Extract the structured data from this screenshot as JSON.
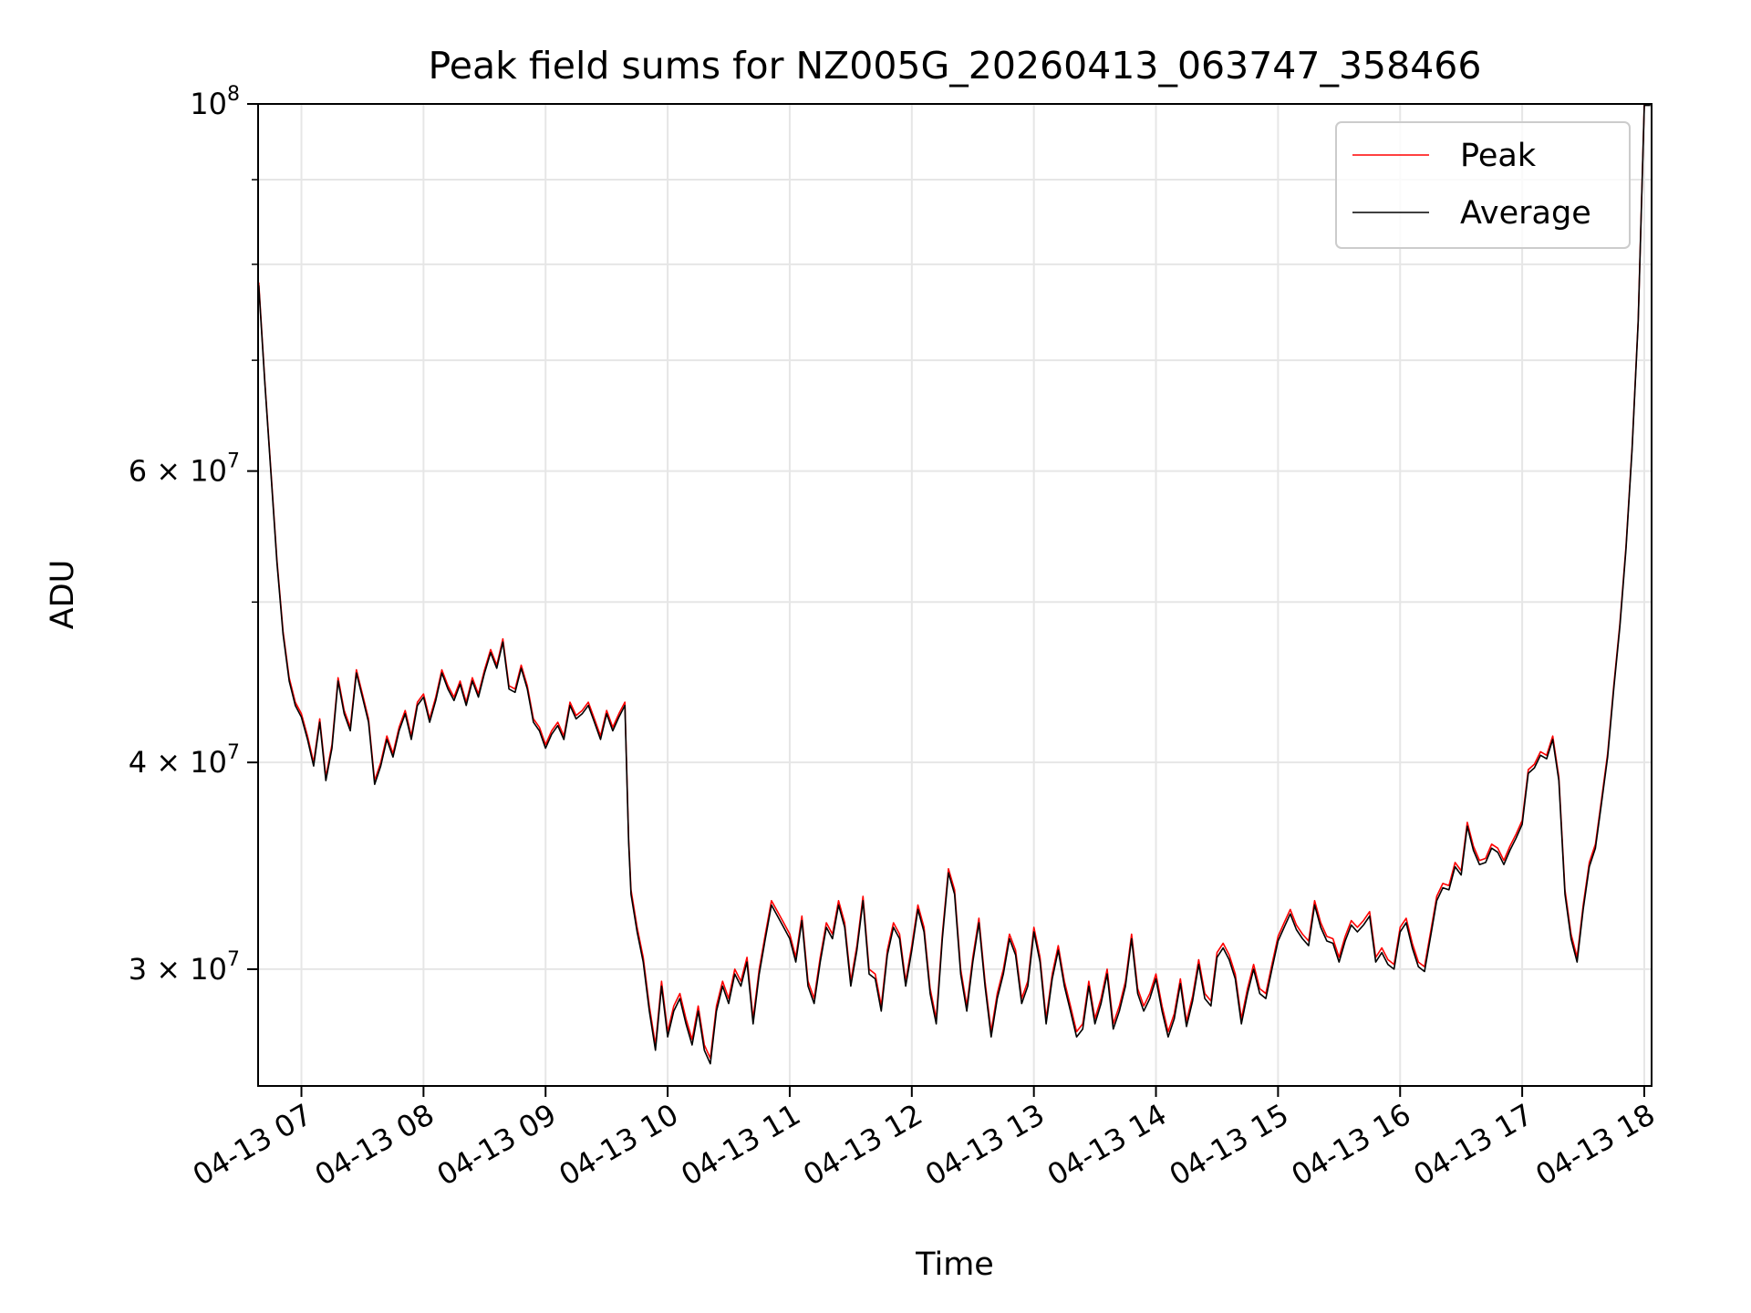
{
  "chart_data": {
    "type": "line",
    "title": "Peak field sums for NZ005G_20260413_063747_358466",
    "xlabel": "Time",
    "ylabel": "ADU",
    "yscale": "log",
    "ylim": [
      25500000,
      100000000
    ],
    "xlim": [
      6.645,
      18.06
    ],
    "grid": true,
    "legend_position": "top-right",
    "x_ticks": [
      {
        "value": 7,
        "label": "04-13 07"
      },
      {
        "value": 8,
        "label": "04-13 08"
      },
      {
        "value": 9,
        "label": "04-13 09"
      },
      {
        "value": 10,
        "label": "04-13 10"
      },
      {
        "value": 11,
        "label": "04-13 11"
      },
      {
        "value": 12,
        "label": "04-13 12"
      },
      {
        "value": 13,
        "label": "04-13 13"
      },
      {
        "value": 14,
        "label": "04-13 14"
      },
      {
        "value": 15,
        "label": "04-13 15"
      },
      {
        "value": 16,
        "label": "04-13 16"
      },
      {
        "value": 17,
        "label": "04-13 17"
      },
      {
        "value": 18,
        "label": "04-13 18"
      }
    ],
    "y_major_ticks": [
      {
        "value": 30000000,
        "mantissa": "3",
        "exponent": "7"
      },
      {
        "value": 40000000,
        "mantissa": "4",
        "exponent": "7"
      },
      {
        "value": 60000000,
        "mantissa": "6",
        "exponent": "7"
      },
      {
        "value": 100000000,
        "mantissa": "",
        "exponent": "8"
      }
    ],
    "y_ticks_base": "10",
    "y_ticks_times": "×",
    "y_minor_ticks": [
      50000000,
      70000000,
      80000000,
      90000000
    ],
    "series": [
      {
        "name": "Peak",
        "color": "#ff0000",
        "x": [
          6.65,
          6.7,
          6.75,
          6.8,
          6.85,
          6.9,
          6.95,
          7.0,
          7.05,
          7.1,
          7.15,
          7.2,
          7.25,
          7.3,
          7.35,
          7.4,
          7.45,
          7.5,
          7.55,
          7.6,
          7.65,
          7.7,
          7.75,
          7.8,
          7.85,
          7.9,
          7.95,
          8.0,
          8.05,
          8.1,
          8.15,
          8.2,
          8.25,
          8.3,
          8.35,
          8.4,
          8.45,
          8.5,
          8.55,
          8.6,
          8.65,
          8.7,
          8.75,
          8.8,
          8.85,
          8.9,
          8.95,
          9.0,
          9.05,
          9.1,
          9.15,
          9.2,
          9.25,
          9.3,
          9.35,
          9.4,
          9.45,
          9.5,
          9.55,
          9.6,
          9.65,
          9.68,
          9.7,
          9.75,
          9.8,
          9.85,
          9.9,
          9.95,
          10.0,
          10.05,
          10.1,
          10.15,
          10.2,
          10.25,
          10.3,
          10.35,
          10.4,
          10.45,
          10.5,
          10.55,
          10.6,
          10.65,
          10.7,
          10.75,
          10.8,
          10.85,
          10.9,
          10.95,
          11.0,
          11.05,
          11.1,
          11.15,
          11.2,
          11.25,
          11.3,
          11.35,
          11.4,
          11.45,
          11.5,
          11.55,
          11.6,
          11.65,
          11.7,
          11.75,
          11.8,
          11.85,
          11.9,
          11.95,
          12.0,
          12.05,
          12.1,
          12.15,
          12.2,
          12.25,
          12.3,
          12.35,
          12.4,
          12.45,
          12.5,
          12.55,
          12.6,
          12.65,
          12.7,
          12.75,
          12.8,
          12.85,
          12.9,
          12.95,
          13.0,
          13.05,
          13.1,
          13.15,
          13.2,
          13.25,
          13.3,
          13.35,
          13.4,
          13.45,
          13.5,
          13.55,
          13.6,
          13.65,
          13.7,
          13.75,
          13.8,
          13.85,
          13.9,
          13.95,
          14.0,
          14.05,
          14.1,
          14.15,
          14.2,
          14.25,
          14.3,
          14.35,
          14.4,
          14.45,
          14.5,
          14.55,
          14.6,
          14.65,
          14.7,
          14.75,
          14.8,
          14.85,
          14.9,
          14.95,
          15.0,
          15.05,
          15.1,
          15.15,
          15.2,
          15.25,
          15.3,
          15.35,
          15.4,
          15.45,
          15.5,
          15.55,
          15.6,
          15.65,
          15.7,
          15.75,
          15.8,
          15.85,
          15.9,
          15.95,
          16.0,
          16.05,
          16.1,
          16.15,
          16.2,
          16.25,
          16.3,
          16.35,
          16.4,
          16.45,
          16.5,
          16.55,
          16.6,
          16.65,
          16.7,
          16.75,
          16.8,
          16.85,
          16.9,
          16.95,
          17.0,
          17.05,
          17.1,
          17.15,
          17.2,
          17.25,
          17.3,
          17.35,
          17.4,
          17.45,
          17.5,
          17.55,
          17.6,
          17.65,
          17.7,
          17.75,
          17.8,
          17.85,
          17.9,
          17.95,
          18.0,
          18.05
        ],
        "values": [
          78000000,
          68000000,
          60000000,
          53000000,
          48000000,
          45000000,
          43500000,
          42800000,
          41500000,
          40000000,
          42500000,
          39200000,
          41000000,
          45000000,
          43000000,
          42000000,
          45500000,
          44000000,
          42500000,
          39000000,
          40000000,
          41500000,
          40500000,
          42000000,
          43000000,
          41500000,
          43500000,
          44000000,
          42500000,
          43800000,
          45500000,
          44500000,
          43800000,
          44800000,
          43500000,
          45000000,
          44000000,
          45500000,
          46800000,
          45800000,
          47500000,
          44500000,
          44300000,
          45800000,
          44500000,
          42500000,
          42000000,
          41000000,
          41800000,
          42300000,
          41500000,
          43500000,
          42700000,
          43000000,
          43500000,
          42500000,
          41500000,
          43000000,
          42000000,
          42800000,
          43500000,
          36000000,
          33500000,
          31800000,
          30500000,
          28500000,
          27000000,
          29500000,
          27500000,
          28500000,
          29000000,
          28000000,
          27200000,
          28500000,
          27000000,
          26500000,
          28500000,
          29500000,
          28800000,
          30000000,
          29500000,
          30500000,
          28000000,
          30000000,
          31500000,
          33000000,
          32500000,
          32000000,
          31500000,
          30500000,
          32300000,
          29500000,
          28800000,
          30500000,
          32000000,
          31500000,
          33000000,
          32000000,
          29500000,
          31000000,
          33200000,
          30000000,
          29800000,
          28500000,
          30800000,
          32000000,
          31500000,
          29500000,
          31000000,
          32800000,
          31800000,
          29200000,
          28000000,
          31500000,
          34500000,
          33500000,
          30000000,
          28500000,
          30500000,
          32200000,
          29500000,
          27500000,
          29000000,
          30000000,
          31500000,
          30800000,
          28800000,
          29500000,
          31800000,
          30500000,
          28000000,
          29800000,
          31000000,
          29500000,
          28500000,
          27500000,
          27800000,
          29500000,
          28000000,
          28800000,
          30000000,
          27800000,
          28500000,
          29500000,
          31500000,
          29200000,
          28500000,
          29000000,
          29800000,
          28500000,
          27500000,
          28200000,
          29600000,
          27900000,
          28900000,
          30400000,
          29000000,
          28700000,
          30700000,
          31100000,
          30600000,
          29800000,
          28000000,
          29200000,
          30200000,
          29200000,
          29000000,
          30200000,
          31400000,
          32000000,
          32600000,
          31900000,
          31500000,
          31200000,
          33000000,
          32000000,
          31400000,
          31300000,
          30500000,
          31400000,
          32100000,
          31800000,
          32100000,
          32500000,
          30500000,
          30900000,
          30400000,
          30200000,
          31800000,
          32200000,
          31100000,
          30300000,
          30100000,
          31600000,
          33200000,
          33800000,
          33700000,
          34800000,
          34400000,
          36800000,
          35600000,
          34900000,
          35000000,
          35700000,
          35500000,
          34900000,
          35600000,
          36200000,
          36900000,
          39600000,
          39900000,
          40600000,
          40400000,
          41500000,
          39200000,
          33500000,
          31500000,
          30500000,
          32800000,
          34800000,
          35700000,
          38000000,
          40500000,
          44500000,
          48500000,
          54000000,
          62000000,
          74000000,
          100000000,
          100000000
        ]
      },
      {
        "name": "Average",
        "color": "#000000",
        "x": [
          6.65,
          6.7,
          6.75,
          6.8,
          6.85,
          6.9,
          6.95,
          7.0,
          7.05,
          7.1,
          7.15,
          7.2,
          7.25,
          7.3,
          7.35,
          7.4,
          7.45,
          7.5,
          7.55,
          7.6,
          7.65,
          7.7,
          7.75,
          7.8,
          7.85,
          7.9,
          7.95,
          8.0,
          8.05,
          8.1,
          8.15,
          8.2,
          8.25,
          8.3,
          8.35,
          8.4,
          8.45,
          8.5,
          8.55,
          8.6,
          8.65,
          8.7,
          8.75,
          8.8,
          8.85,
          8.9,
          8.95,
          9.0,
          9.05,
          9.1,
          9.15,
          9.2,
          9.25,
          9.3,
          9.35,
          9.4,
          9.45,
          9.5,
          9.55,
          9.6,
          9.65,
          9.68,
          9.7,
          9.75,
          9.8,
          9.85,
          9.9,
          9.95,
          10.0,
          10.05,
          10.1,
          10.15,
          10.2,
          10.25,
          10.3,
          10.35,
          10.4,
          10.45,
          10.5,
          10.55,
          10.6,
          10.65,
          10.7,
          10.75,
          10.8,
          10.85,
          10.9,
          10.95,
          11.0,
          11.05,
          11.1,
          11.15,
          11.2,
          11.25,
          11.3,
          11.35,
          11.4,
          11.45,
          11.5,
          11.55,
          11.6,
          11.65,
          11.7,
          11.75,
          11.8,
          11.85,
          11.9,
          11.95,
          12.0,
          12.05,
          12.1,
          12.15,
          12.2,
          12.25,
          12.3,
          12.35,
          12.4,
          12.45,
          12.5,
          12.55,
          12.6,
          12.65,
          12.7,
          12.75,
          12.8,
          12.85,
          12.9,
          12.95,
          13.0,
          13.05,
          13.1,
          13.15,
          13.2,
          13.25,
          13.3,
          13.35,
          13.4,
          13.45,
          13.5,
          13.55,
          13.6,
          13.65,
          13.7,
          13.75,
          13.8,
          13.85,
          13.9,
          13.95,
          14.0,
          14.05,
          14.1,
          14.15,
          14.2,
          14.25,
          14.3,
          14.35,
          14.4,
          14.45,
          14.5,
          14.55,
          14.6,
          14.65,
          14.7,
          14.75,
          14.8,
          14.85,
          14.9,
          14.95,
          15.0,
          15.05,
          15.1,
          15.15,
          15.2,
          15.25,
          15.3,
          15.35,
          15.4,
          15.45,
          15.5,
          15.55,
          15.6,
          15.65,
          15.7,
          15.75,
          15.8,
          15.85,
          15.9,
          15.95,
          16.0,
          16.05,
          16.1,
          16.15,
          16.2,
          16.25,
          16.3,
          16.35,
          16.4,
          16.45,
          16.5,
          16.55,
          16.6,
          16.65,
          16.7,
          16.75,
          16.8,
          16.85,
          16.9,
          16.95,
          17.0,
          17.05,
          17.1,
          17.15,
          17.2,
          17.25,
          17.3,
          17.35,
          17.4,
          17.45,
          17.5,
          17.55,
          17.6,
          17.65,
          17.7,
          17.75,
          17.8,
          17.85,
          17.9,
          17.95,
          18.0,
          18.05
        ],
        "values": [
          77700000,
          67800000,
          59800000,
          52800000,
          47800000,
          44800000,
          43300000,
          42600000,
          41300000,
          39800000,
          42300000,
          39000000,
          40800000,
          44800000,
          42800000,
          41800000,
          45300000,
          43800000,
          42300000,
          38800000,
          39800000,
          41300000,
          40300000,
          41800000,
          42800000,
          41300000,
          43300000,
          43800000,
          42300000,
          43600000,
          45300000,
          44300000,
          43600000,
          44600000,
          43300000,
          44800000,
          43800000,
          45300000,
          46600000,
          45600000,
          47300000,
          44300000,
          44100000,
          45600000,
          44300000,
          42300000,
          41800000,
          40800000,
          41600000,
          42100000,
          41300000,
          43300000,
          42500000,
          42800000,
          43300000,
          42300000,
          41300000,
          42800000,
          41800000,
          42600000,
          43300000,
          35800000,
          33300000,
          31600000,
          30300000,
          28300000,
          26800000,
          29300000,
          27300000,
          28300000,
          28800000,
          27800000,
          27000000,
          28300000,
          26800000,
          26300000,
          28300000,
          29300000,
          28600000,
          29800000,
          29300000,
          30300000,
          27800000,
          29800000,
          31300000,
          32800000,
          32300000,
          31800000,
          31300000,
          30300000,
          32100000,
          29300000,
          28600000,
          30300000,
          31800000,
          31300000,
          32800000,
          31800000,
          29300000,
          30800000,
          33000000,
          29800000,
          29600000,
          28300000,
          30600000,
          31800000,
          31300000,
          29300000,
          30800000,
          32600000,
          31600000,
          29000000,
          27800000,
          31300000,
          34300000,
          33300000,
          29800000,
          28300000,
          30300000,
          32000000,
          29300000,
          27300000,
          28800000,
          29800000,
          31300000,
          30600000,
          28600000,
          29300000,
          31600000,
          30300000,
          27800000,
          29600000,
          30800000,
          29300000,
          28300000,
          27300000,
          27600000,
          29300000,
          27800000,
          28600000,
          29800000,
          27600000,
          28300000,
          29300000,
          31300000,
          29000000,
          28300000,
          28800000,
          29600000,
          28300000,
          27300000,
          28000000,
          29400000,
          27700000,
          28700000,
          30200000,
          28800000,
          28500000,
          30500000,
          30900000,
          30400000,
          29600000,
          27800000,
          29000000,
          30000000,
          29000000,
          28800000,
          30000000,
          31200000,
          31800000,
          32400000,
          31700000,
          31300000,
          31000000,
          32800000,
          31800000,
          31200000,
          31100000,
          30300000,
          31200000,
          31900000,
          31600000,
          31900000,
          32300000,
          30300000,
          30700000,
          30200000,
          30000000,
          31600000,
          32000000,
          30900000,
          30100000,
          29900000,
          31400000,
          33000000,
          33600000,
          33500000,
          34600000,
          34200000,
          36600000,
          35400000,
          34700000,
          34800000,
          35500000,
          35300000,
          34700000,
          35400000,
          36000000,
          36700000,
          39400000,
          39700000,
          40400000,
          40200000,
          41300000,
          39000000,
          33300000,
          31300000,
          30300000,
          32600000,
          34600000,
          35500000,
          37800000,
          40300000,
          44300000,
          48300000,
          53800000,
          61800000,
          73800000,
          99800000,
          99800000
        ]
      }
    ]
  }
}
